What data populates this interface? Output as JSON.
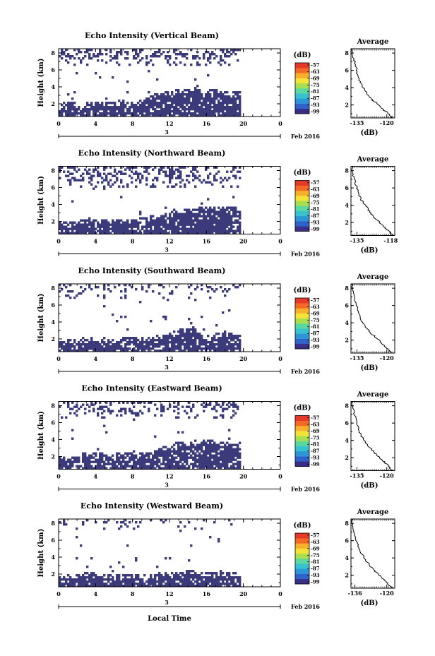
{
  "colors": {
    "echo": "#3b3b7c",
    "colorbar": [
      "#3a2f86",
      "#2f63c9",
      "#2d96d6",
      "#39c1d0",
      "#5ad8a0",
      "#a8de4f",
      "#f4e23a",
      "#f7b02b",
      "#f26a26",
      "#e33a2a"
    ]
  },
  "figure": {
    "xlabel": "Local Time",
    "date_label": "Feb 2016",
    "day_label": "3"
  },
  "chart_data": [
    {
      "type": "heatmap",
      "title": "Echo Intensity (Vertical Beam)",
      "ylabel": "Height (km)",
      "x_ticks": [
        "0",
        "4",
        "8",
        "12",
        "16",
        "20",
        "0"
      ],
      "y_ticks": [
        "2",
        "4",
        "6",
        "8"
      ],
      "xlim": [
        0,
        24
      ],
      "ylim": [
        0.5,
        8.5
      ],
      "data_end_hour": 19.7,
      "bands": [
        {
          "hour_start": 0.0,
          "hour_end": 19.7,
          "top_km": [
            2.0,
            2.3,
            2.0,
            2.2,
            2.2,
            2.3,
            2.4,
            2.4,
            2.3,
            2.6,
            3.2,
            3.4,
            3.6,
            3.8,
            3.8,
            3.8,
            3.8,
            3.6,
            3.5,
            3.4
          ],
          "density": 0.85
        },
        {
          "hour_start": 0.0,
          "hour_end": 19.7,
          "from_km": 6.5,
          "to_km": 8.5,
          "density": 0.35
        }
      ],
      "colorbar": {
        "label": "(dB)",
        "ticks": [
          "-57",
          "-63",
          "-69",
          "-75",
          "-81",
          "-87",
          "-93",
          "-99"
        ]
      },
      "profile": {
        "title": "Average",
        "xlabel": "(dB)",
        "xticks": [
          "-135",
          "-120"
        ],
        "xlim": [
          -138,
          -116
        ],
        "yticks": [
          "2",
          "4",
          "6",
          "8"
        ],
        "points": [
          [
            -137.5,
            8.5
          ],
          [
            -136.8,
            7.5
          ],
          [
            -135.5,
            6.5
          ],
          [
            -134.8,
            5.5
          ],
          [
            -133.6,
            4.7
          ],
          [
            -131.8,
            4.0
          ],
          [
            -129.6,
            3.2
          ],
          [
            -127.5,
            2.6
          ],
          [
            -125.6,
            2.3
          ],
          [
            -123.2,
            1.9
          ],
          [
            -121.5,
            1.4
          ],
          [
            -118.5,
            0.9
          ],
          [
            -117.2,
            0.5
          ]
        ]
      }
    },
    {
      "type": "heatmap",
      "title": "Echo Intensity (Northward Beam)",
      "ylabel": "Height (km)",
      "x_ticks": [
        "0",
        "4",
        "8",
        "12",
        "16",
        "20",
        "0"
      ],
      "y_ticks": [
        "2",
        "4",
        "6",
        "8"
      ],
      "xlim": [
        0,
        24
      ],
      "ylim": [
        0.5,
        8.5
      ],
      "data_end_hour": 19.7,
      "bands": [
        {
          "hour_start": 0.0,
          "hour_end": 19.7,
          "top_km": [
            2.2,
            2.0,
            2.2,
            2.4,
            2.3,
            2.2,
            2.3,
            2.4,
            2.3,
            2.5,
            2.8,
            3.0,
            3.4,
            3.5,
            3.6,
            3.7,
            3.8,
            3.8,
            3.7,
            3.6
          ],
          "density": 0.85
        },
        {
          "hour_start": 0.0,
          "hour_end": 19.7,
          "from_km": 6.0,
          "to_km": 8.5,
          "density": 0.35
        }
      ],
      "colorbar": {
        "label": "(dB)",
        "ticks": [
          "-57",
          "-63",
          "-69",
          "-75",
          "-81",
          "-87",
          "-93",
          "-99"
        ]
      },
      "profile": {
        "title": "Average",
        "xlabel": "(dB)",
        "xticks": [
          "-135",
          "-118"
        ],
        "xlim": [
          -138,
          -116
        ],
        "yticks": [
          "2",
          "4",
          "6",
          "8"
        ],
        "points": [
          [
            -137.6,
            8.5
          ],
          [
            -137.0,
            7.6
          ],
          [
            -135.8,
            6.6
          ],
          [
            -134.5,
            5.6
          ],
          [
            -132.8,
            4.6
          ],
          [
            -130.4,
            3.9
          ],
          [
            -128.5,
            3.2
          ],
          [
            -126.5,
            2.6
          ],
          [
            -124.0,
            2.1
          ],
          [
            -121.8,
            1.6
          ],
          [
            -119.5,
            1.1
          ],
          [
            -117.0,
            0.5
          ]
        ]
      }
    },
    {
      "type": "heatmap",
      "title": "Echo Intensity (Southward Beam)",
      "ylabel": "Height (km)",
      "x_ticks": [
        "0",
        "4",
        "8",
        "12",
        "16",
        "20",
        "0"
      ],
      "y_ticks": [
        "2",
        "4",
        "6",
        "8"
      ],
      "xlim": [
        0,
        24
      ],
      "ylim": [
        0.5,
        8.5
      ],
      "data_end_hour": 19.7,
      "bands": [
        {
          "hour_start": 0.0,
          "hour_end": 19.7,
          "top_km": [
            1.8,
            1.9,
            2.1,
            2.2,
            2.2,
            2.1,
            2.1,
            2.3,
            2.2,
            2.3,
            2.4,
            2.6,
            3.0,
            3.3,
            3.4,
            2.4,
            2.6,
            3.0,
            2.7,
            2.3
          ],
          "density": 0.85
        },
        {
          "hour_start": 0.0,
          "hour_end": 19.7,
          "from_km": 6.8,
          "to_km": 8.5,
          "density": 0.18
        }
      ],
      "colorbar": {
        "label": "(dB)",
        "ticks": [
          "-57",
          "-63",
          "-69",
          "-75",
          "-81",
          "-87",
          "-93",
          "-99"
        ]
      },
      "profile": {
        "title": "Average",
        "xlabel": "(dB)",
        "xticks": [
          "-135",
          "-120"
        ],
        "xlim": [
          -138,
          -116
        ],
        "yticks": [
          "2",
          "4",
          "6",
          "8"
        ],
        "points": [
          [
            -137.5,
            8.5
          ],
          [
            -136.9,
            7.5
          ],
          [
            -135.6,
            6.3
          ],
          [
            -134.2,
            5.3
          ],
          [
            -132.6,
            4.2
          ],
          [
            -130.6,
            3.5
          ],
          [
            -128.4,
            2.9
          ],
          [
            -126.0,
            2.4
          ],
          [
            -123.5,
            1.9
          ],
          [
            -121.2,
            1.3
          ],
          [
            -118.8,
            0.8
          ],
          [
            -117.4,
            0.5
          ]
        ]
      }
    },
    {
      "type": "heatmap",
      "title": "Echo Intensity (Eastward Beam)",
      "ylabel": "Height (km)",
      "x_ticks": [
        "0",
        "4",
        "8",
        "12",
        "16",
        "20",
        "0"
      ],
      "y_ticks": [
        "2",
        "4",
        "6",
        "8"
      ],
      "xlim": [
        0,
        24
      ],
      "ylim": [
        0.5,
        8.5
      ],
      "data_end_hour": 19.7,
      "bands": [
        {
          "hour_start": 0.0,
          "hour_end": 19.7,
          "top_km": [
            1.9,
            2.0,
            2.3,
            2.5,
            2.5,
            2.3,
            2.4,
            2.5,
            2.4,
            2.6,
            2.9,
            3.4,
            3.6,
            3.8,
            3.9,
            3.9,
            3.9,
            3.8,
            3.6,
            3.4
          ],
          "density": 0.85
        },
        {
          "hour_start": 0.0,
          "hour_end": 19.7,
          "from_km": 6.5,
          "to_km": 8.5,
          "density": 0.3
        }
      ],
      "colorbar": {
        "label": "(dB)",
        "ticks": [
          "-57",
          "-63",
          "-69",
          "-75",
          "-81",
          "-87",
          "-93",
          "-99"
        ]
      },
      "profile": {
        "title": "Average",
        "xlabel": "(dB)",
        "xticks": [
          "-135",
          "-120"
        ],
        "xlim": [
          -138,
          -116
        ],
        "yticks": [
          "2",
          "4",
          "6",
          "8"
        ],
        "points": [
          [
            -137.6,
            8.5
          ],
          [
            -136.9,
            7.6
          ],
          [
            -135.8,
            6.6
          ],
          [
            -134.6,
            5.6
          ],
          [
            -133.0,
            4.6
          ],
          [
            -130.8,
            3.8
          ],
          [
            -128.7,
            3.2
          ],
          [
            -126.3,
            2.6
          ],
          [
            -124.0,
            2.1
          ],
          [
            -121.7,
            1.6
          ],
          [
            -119.4,
            1.1
          ],
          [
            -117.3,
            0.5
          ]
        ]
      }
    },
    {
      "type": "heatmap",
      "title": "Echo Intensity (Westward Beam)",
      "ylabel": "Height (km)",
      "x_ticks": [
        "0",
        "4",
        "8",
        "12",
        "16",
        "20",
        "0"
      ],
      "y_ticks": [
        "2",
        "4",
        "6",
        "8"
      ],
      "xlim": [
        0,
        24
      ],
      "ylim": [
        0.5,
        8.5
      ],
      "data_end_hour": 19.7,
      "bands": [
        {
          "hour_start": 0.0,
          "hour_end": 19.7,
          "top_km": [
            1.8,
            1.9,
            2.0,
            2.2,
            2.1,
            2.0,
            2.0,
            2.1,
            2.0,
            2.1,
            2.1,
            2.2,
            2.3,
            2.4,
            2.4,
            2.2,
            2.3,
            2.2,
            2.2,
            2.1
          ],
          "density": 0.85
        },
        {
          "hour_start": 0.0,
          "hour_end": 19.7,
          "from_km": 7.3,
          "to_km": 8.5,
          "density": 0.16
        }
      ],
      "colorbar": {
        "label": "(dB)",
        "ticks": [
          "-57",
          "-63",
          "-69",
          "-75",
          "-81",
          "-87",
          "-93",
          "-99"
        ]
      },
      "profile": {
        "title": "Average",
        "xlabel": "(dB)",
        "xticks": [
          "-136",
          "-120"
        ],
        "xlim": [
          -138,
          -116
        ],
        "yticks": [
          "2",
          "4",
          "6",
          "8"
        ],
        "points": [
          [
            -137.6,
            8.5
          ],
          [
            -137.0,
            7.6
          ],
          [
            -136.0,
            6.6
          ],
          [
            -134.8,
            5.7
          ],
          [
            -133.2,
            4.7
          ],
          [
            -131.0,
            3.9
          ],
          [
            -128.8,
            3.2
          ],
          [
            -126.5,
            2.6
          ],
          [
            -124.2,
            2.1
          ],
          [
            -122.0,
            1.6
          ],
          [
            -119.8,
            1.1
          ],
          [
            -117.4,
            0.5
          ]
        ]
      }
    }
  ]
}
